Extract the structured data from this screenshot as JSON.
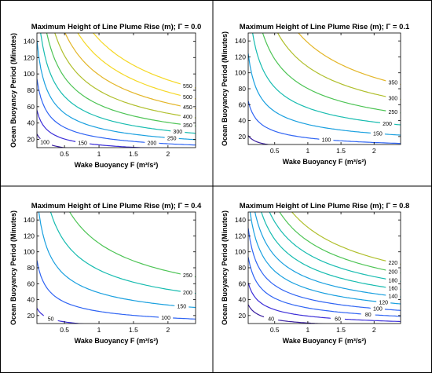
{
  "colors": {
    "c10": "#3a1fa0",
    "c20": "#3c2ed8",
    "c30": "#2f64f3",
    "c40": "#1aa0df",
    "c50": "#18bcb0",
    "c60": "#4dc455",
    "c70": "#b0bf2c",
    "c80": "#e3b628",
    "c90": "#f5d825"
  },
  "chart_data": [
    {
      "type": "contour",
      "title": "Maximum Height of Line Plume Rise (m); Γ = 0.0",
      "xlabel": "Wake Buoyancy F (m³/s²)",
      "ylabel": "Ocean Buoyancy Period (Minutes)",
      "xlim": [
        0.1,
        2.4
      ],
      "ylim": [
        10,
        150
      ],
      "xticks": [
        "0.5",
        "1",
        "1.5",
        "2"
      ],
      "yticks": [
        "20",
        "40",
        "60",
        "80",
        "100",
        "120",
        "140"
      ],
      "levels": [
        100,
        150,
        200,
        250,
        300,
        350,
        400,
        450,
        500,
        550
      ],
      "colors": [
        "c10",
        "c20",
        "c30",
        "c40",
        "c50",
        "c60",
        "c70",
        "c80",
        "c90",
        "c90"
      ],
      "label_levels": [
        100,
        150,
        200,
        250,
        300,
        350,
        400,
        450,
        500,
        550
      ],
      "grid": false
    },
    {
      "type": "contour",
      "title": "Maximum Height of Line Plume Rise (m); Γ = 0.1",
      "xlabel": "Wake Buoyancy F (m³/s²)",
      "ylabel": "Ocean Buoyancy Period (Minutes)",
      "xlim": [
        0.1,
        2.4
      ],
      "ylim": [
        10,
        150
      ],
      "xticks": [
        "0.5",
        "1",
        "1.5",
        "2"
      ],
      "yticks": [
        "20",
        "40",
        "60",
        "80",
        "100",
        "120",
        "140"
      ],
      "levels": [
        50,
        100,
        150,
        200,
        250,
        300,
        350
      ],
      "colors": [
        "c10",
        "c30",
        "c40",
        "c50",
        "c60",
        "c70",
        "c80"
      ],
      "label_levels": [
        50,
        100,
        150,
        200,
        250,
        300,
        350
      ],
      "grid": false
    },
    {
      "type": "contour",
      "title": "Maximum Height of Line Plume Rise (m); Γ = 0.4",
      "xlabel": "Wake Buoyancy F (m³/s²)",
      "ylabel": "Ocean Buoyancy Period (Minutes)",
      "xlim": [
        0.1,
        2.4
      ],
      "ylim": [
        10,
        150
      ],
      "xticks": [
        "0.5",
        "1",
        "1.5",
        "2"
      ],
      "yticks": [
        "20",
        "40",
        "60",
        "80",
        "100",
        "120",
        "140"
      ],
      "levels": [
        50,
        100,
        150,
        200,
        250
      ],
      "colors": [
        "c20",
        "c30",
        "c40",
        "c50",
        "c60"
      ],
      "label_levels": [
        50,
        100,
        150,
        200,
        250
      ],
      "grid": false
    },
    {
      "type": "contour",
      "title": "Maximum Height of Line Plume Rise (m); Γ = 0.8",
      "xlabel": "Wake Buoyancy F (m³/s²)",
      "ylabel": "Ocean Buoyancy Period (Minutes)",
      "xlim": [
        0.1,
        2.4
      ],
      "ylim": [
        10,
        150
      ],
      "xticks": [
        "0.5",
        "1",
        "1.5",
        "2"
      ],
      "yticks": [
        "20",
        "40",
        "60",
        "80",
        "100",
        "120",
        "140"
      ],
      "levels": [
        40,
        60,
        80,
        100,
        120,
        140,
        160,
        180,
        200,
        220
      ],
      "colors": [
        "c10",
        "c20",
        "c30",
        "c30",
        "c40",
        "c40",
        "c50",
        "c50",
        "c60",
        "c70"
      ],
      "label_levels": [
        40,
        60,
        80,
        100,
        120,
        140,
        160,
        180,
        200,
        220
      ],
      "grid": false
    }
  ]
}
